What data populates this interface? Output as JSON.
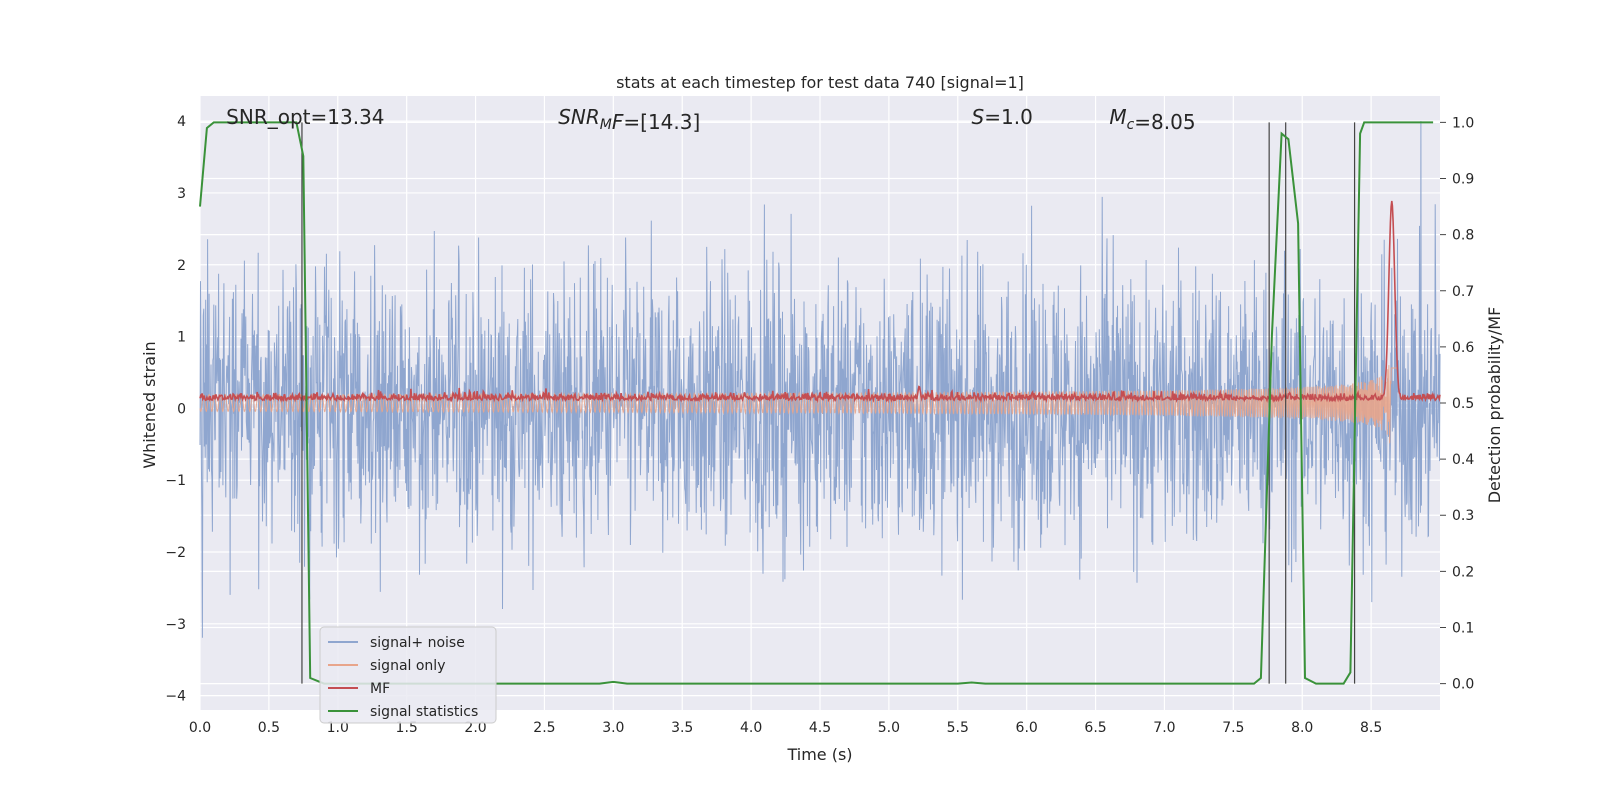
{
  "chart_data": {
    "type": "line",
    "title": "stats at each timestep for test data 740 [signal=1]",
    "xlabel": "Time (s)",
    "ylabel_left": "Whitened strain",
    "ylabel_right": "Detection probability/MF",
    "xlim": [
      0.0,
      9.0
    ],
    "ylim_left": [
      -4.2,
      4.35
    ],
    "ylim_right": [
      -0.047,
      1.047
    ],
    "grid": true,
    "legend_position": "lower-left",
    "xticks": [
      "0.0",
      "0.5",
      "1.0",
      "1.5",
      "2.0",
      "2.5",
      "3.0",
      "3.5",
      "4.0",
      "4.5",
      "5.0",
      "5.5",
      "6.0",
      "6.5",
      "7.0",
      "7.5",
      "8.0",
      "8.5"
    ],
    "yticks_left": [
      "−4",
      "−3",
      "−2",
      "−1",
      "0",
      "1",
      "2",
      "3",
      "4"
    ],
    "yticks_right": [
      "0.0",
      "0.1",
      "0.2",
      "0.3",
      "0.4",
      "0.5",
      "0.6",
      "0.7",
      "0.8",
      "0.9",
      "1.0"
    ],
    "annotations": [
      {
        "prefix": "SNR_opt",
        "sub": "",
        "suffix": "=13.34",
        "italic": false,
        "x": 0.19
      },
      {
        "prefix": "SNR",
        "sub": "M",
        "suffix": "F=[14.3]",
        "italic": true,
        "x": 2.6
      },
      {
        "prefix": "S",
        "sub": "",
        "suffix": "=1.0",
        "italic": true,
        "x": 5.6
      },
      {
        "prefix": "M",
        "sub": "c",
        "suffix": "=8.05",
        "italic": true,
        "x": 6.6
      }
    ],
    "vlines": [
      0.74,
      7.76,
      7.88,
      8.38
    ],
    "series": [
      {
        "name": "signal+ noise",
        "color": "#8fa6cf",
        "description": "whitened noisy strain, amplitude envelope roughly ±2.5 with spikes to ±4",
        "envelope_peak": 2.5,
        "spike_max": 4.0
      },
      {
        "name": "signal only",
        "color": "#e8a58b",
        "description": "chirp signal growing in amplitude until merger",
        "merger_time": 8.65,
        "peak_amplitude_right_axis": [
          0.18,
          0.86
        ]
      },
      {
        "name": "MF",
        "color": "#c44e52",
        "baseline_right_axis": 0.505,
        "peaks": [
          [
            5.22,
            0.53
          ],
          [
            8.65,
            0.86
          ]
        ]
      },
      {
        "name": "signal statistics",
        "color": "#3a923a",
        "points": [
          [
            0.0,
            0.85
          ],
          [
            0.05,
            0.99
          ],
          [
            0.1,
            1.0
          ],
          [
            0.7,
            1.0
          ],
          [
            0.75,
            0.94
          ],
          [
            0.8,
            0.01
          ],
          [
            0.9,
            0.0
          ],
          [
            2.9,
            0.0
          ],
          [
            3.0,
            0.003
          ],
          [
            3.1,
            0.0
          ],
          [
            5.5,
            0.0
          ],
          [
            5.6,
            0.002
          ],
          [
            5.7,
            0.0
          ],
          [
            7.65,
            0.0
          ],
          [
            7.7,
            0.01
          ],
          [
            7.78,
            0.62
          ],
          [
            7.85,
            0.98
          ],
          [
            7.9,
            0.97
          ],
          [
            7.97,
            0.82
          ],
          [
            8.02,
            0.01
          ],
          [
            8.1,
            0.0
          ],
          [
            8.3,
            0.0
          ],
          [
            8.35,
            0.02
          ],
          [
            8.42,
            0.98
          ],
          [
            8.45,
            1.0
          ],
          [
            8.95,
            1.0
          ]
        ]
      }
    ]
  }
}
